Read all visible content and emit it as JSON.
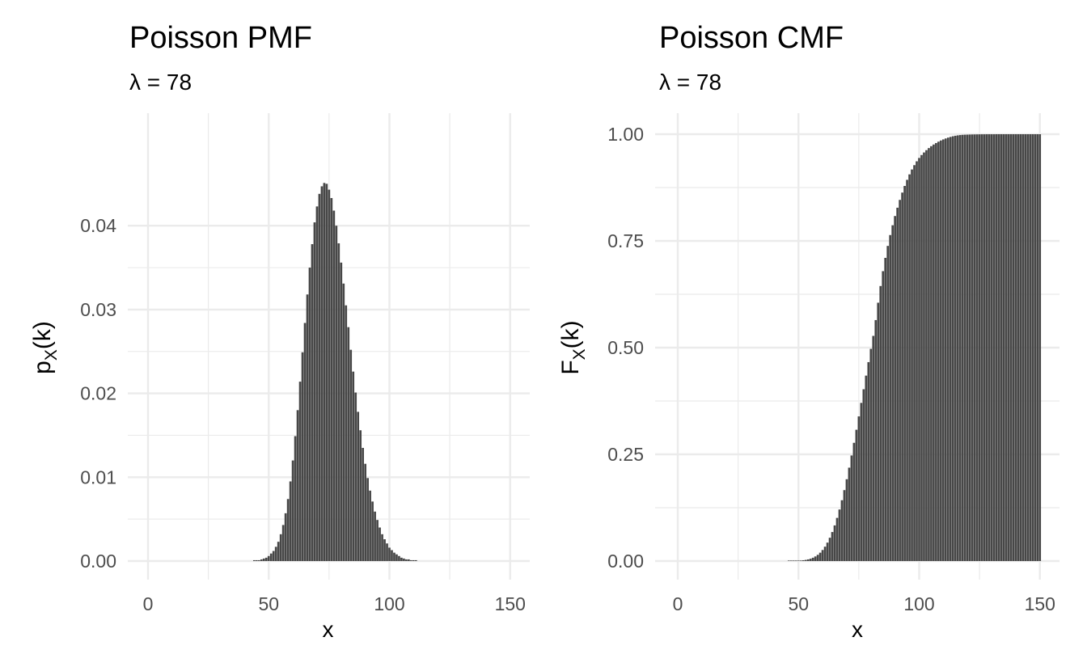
{
  "chart_data": [
    {
      "type": "bar",
      "title": "Poisson PMF",
      "subtitle": "λ = 78",
      "lambda": 78,
      "xlabel": "x",
      "ylabel_main": "p",
      "ylabel_sub": "X",
      "ylabel_tail": "(k)",
      "xlim": [
        0,
        150
      ],
      "ylim": [
        0,
        0.045
      ],
      "x_ticks": [
        "0",
        "50",
        "100",
        "150"
      ],
      "y_ticks": [
        "0.00",
        "0.01",
        "0.02",
        "0.03",
        "0.04"
      ],
      "x_tick_values": [
        0,
        50,
        100,
        150
      ],
      "y_tick_values": [
        0,
        0.01,
        0.02,
        0.03,
        0.04
      ],
      "grid": true,
      "x": [
        0,
        1,
        2,
        3,
        4,
        5,
        6,
        7,
        8,
        9,
        10,
        11,
        12,
        13,
        14,
        15,
        16,
        17,
        18,
        19,
        20,
        21,
        22,
        23,
        24,
        25,
        26,
        27,
        28,
        29,
        30,
        31,
        32,
        33,
        34,
        35,
        36,
        37,
        38,
        39,
        40,
        41,
        42,
        43,
        44,
        45,
        46,
        47,
        48,
        49,
        50,
        51,
        52,
        53,
        54,
        55,
        56,
        57,
        58,
        59,
        60,
        61,
        62,
        63,
        64,
        65,
        66,
        67,
        68,
        69,
        70,
        71,
        72,
        73,
        74,
        75,
        76,
        77,
        78,
        79,
        80,
        81,
        82,
        83,
        84,
        85,
        86,
        87,
        88,
        89,
        90,
        91,
        92,
        93,
        94,
        95,
        96,
        97,
        98,
        99,
        100,
        101,
        102,
        103,
        104,
        105,
        106,
        107,
        108,
        109,
        110,
        111,
        112,
        113,
        114,
        115,
        116,
        117,
        118,
        119,
        120
      ],
      "values": [
        0,
        0,
        0,
        0,
        0,
        0,
        0,
        0,
        0,
        0,
        0,
        0,
        0,
        0,
        0,
        0,
        0,
        0,
        0,
        0,
        0,
        0,
        0,
        0,
        0,
        0,
        0,
        0,
        0,
        0,
        0,
        0,
        0,
        0,
        0,
        0,
        0,
        0,
        0,
        0,
        0,
        0,
        0.0,
        0.0,
        0.0001,
        0.0001,
        0.0001,
        0.0002,
        0.0003,
        0.0004,
        0.0006,
        0.0009,
        0.0012,
        0.0017,
        0.0023,
        0.0032,
        0.0043,
        0.0057,
        0.0074,
        0.0095,
        0.012,
        0.0149,
        0.018,
        0.0214,
        0.0249,
        0.0284,
        0.0318,
        0.035,
        0.0378,
        0.0404,
        0.0423,
        0.0438,
        0.0447,
        0.0451,
        0.045,
        0.0443,
        0.0433,
        0.0418,
        0.04,
        0.0379,
        0.0356,
        0.0331,
        0.0305,
        0.0279,
        0.0252,
        0.0226,
        0.0201,
        0.0178,
        0.0156,
        0.0135,
        0.0116,
        0.0099,
        0.0084,
        0.0071,
        0.0059,
        0.0049,
        0.004,
        0.0032,
        0.0026,
        0.0021,
        0.0016,
        0.0013,
        0.001,
        0.0008,
        0.0006,
        0.0004,
        0.0003,
        0.0002,
        0.0002,
        0.0001,
        0.0001,
        0.0001,
        0.0,
        0.0,
        0.0,
        0.0,
        0.0,
        0.0,
        0.0,
        0.0,
        0.0
      ]
    },
    {
      "type": "bar",
      "title": "Poisson CMF",
      "subtitle": "λ = 78",
      "lambda": 78,
      "xlabel": "x",
      "ylabel_main": "F",
      "ylabel_sub": "X",
      "ylabel_tail": "(k)",
      "xlim": [
        0,
        150
      ],
      "ylim": [
        0,
        1
      ],
      "x_ticks": [
        "0",
        "50",
        "100",
        "150"
      ],
      "y_ticks": [
        "0.00",
        "0.25",
        "0.50",
        "0.75",
        "1.00"
      ],
      "x_tick_values": [
        0,
        50,
        100,
        150
      ],
      "y_tick_values": [
        0,
        0.25,
        0.5,
        0.75,
        1.0
      ],
      "grid": true,
      "x": [
        0,
        1,
        2,
        3,
        4,
        5,
        6,
        7,
        8,
        9,
        10,
        11,
        12,
        13,
        14,
        15,
        16,
        17,
        18,
        19,
        20,
        21,
        22,
        23,
        24,
        25,
        26,
        27,
        28,
        29,
        30,
        31,
        32,
        33,
        34,
        35,
        36,
        37,
        38,
        39,
        40,
        41,
        42,
        43,
        44,
        45,
        46,
        47,
        48,
        49,
        50,
        51,
        52,
        53,
        54,
        55,
        56,
        57,
        58,
        59,
        60,
        61,
        62,
        63,
        64,
        65,
        66,
        67,
        68,
        69,
        70,
        71,
        72,
        73,
        74,
        75,
        76,
        77,
        78,
        79,
        80,
        81,
        82,
        83,
        84,
        85,
        86,
        87,
        88,
        89,
        90,
        91,
        92,
        93,
        94,
        95,
        96,
        97,
        98,
        99,
        100,
        101,
        102,
        103,
        104,
        105,
        106,
        107,
        108,
        109,
        110,
        111,
        112,
        113,
        114,
        115,
        116,
        117,
        118,
        119,
        120,
        121,
        122,
        123,
        124,
        125,
        126,
        127,
        128,
        129,
        130,
        131,
        132,
        133,
        134,
        135,
        136,
        137,
        138,
        139,
        140,
        141,
        142,
        143,
        144,
        145,
        146,
        147,
        148,
        149,
        150
      ],
      "values": [
        0,
        0,
        0,
        0,
        0,
        0,
        0,
        0,
        0,
        0,
        0,
        0,
        0,
        0,
        0,
        0,
        0,
        0,
        0,
        0,
        0,
        0,
        0,
        0,
        0,
        0,
        0,
        0,
        0,
        0,
        0,
        0,
        0,
        0,
        0,
        0,
        0,
        0,
        0,
        0,
        0,
        0,
        0,
        0,
        0,
        0,
        0.0001,
        0.0002,
        0.0003,
        0.0005,
        0.0008,
        0.0012,
        0.0018,
        0.0027,
        0.0039,
        0.0055,
        0.0078,
        0.0108,
        0.0146,
        0.0196,
        0.0259,
        0.0337,
        0.0432,
        0.0546,
        0.068,
        0.0835,
        0.1011,
        0.1208,
        0.1425,
        0.1662,
        0.1917,
        0.2188,
        0.2473,
        0.277,
        0.3076,
        0.3389,
        0.3706,
        0.4025,
        0.4344,
        0.466,
        0.4971,
        0.5275,
        0.5645,
        0.6052,
        0.6443,
        0.6791,
        0.7103,
        0.7383,
        0.7637,
        0.7867,
        0.8083,
        0.8278,
        0.8461,
        0.8632,
        0.8788,
        0.8931,
        0.9059,
        0.9174,
        0.9275,
        0.9365,
        0.9443,
        0.9512,
        0.9572,
        0.9626,
        0.9675,
        0.9719,
        0.9758,
        0.9793,
        0.9825,
        0.9853,
        0.9878,
        0.99,
        0.992,
        0.9937,
        0.9952,
        0.9964,
        0.9973,
        0.998,
        0.9985,
        0.9988,
        0.999,
        0.9992,
        0.9994,
        0.9995,
        0.9996,
        0.9997,
        0.9998,
        0.9998,
        0.9999,
        0.9999,
        0.9999,
        0.9999,
        1.0,
        1.0,
        1.0,
        1.0,
        1.0,
        1.0,
        1.0,
        1.0,
        1.0,
        1.0,
        1.0,
        1.0,
        1.0,
        1.0,
        1.0,
        1.0,
        1.0,
        1.0,
        1.0
      ]
    }
  ],
  "colors": {
    "bar": "#474747",
    "grid": "#ebebeb",
    "tick_label": "#4d4d4d",
    "text": "#000000",
    "background": "#ffffff"
  }
}
